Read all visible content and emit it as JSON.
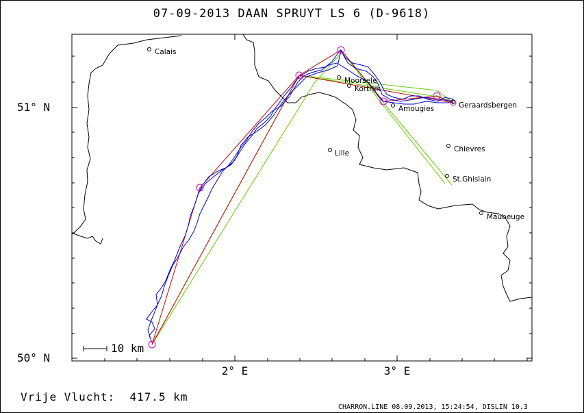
{
  "title": "07-09-2013   DAAN SPRUYT   LS 6 (D-9618)",
  "axes": {
    "y_labels": [
      "51° N",
      "50° N"
    ],
    "x_labels": [
      "2° E",
      "3° E"
    ]
  },
  "scale_label": "10 km",
  "towns": [
    "Calais",
    "Moorsele",
    "Kortrijk",
    "Amougies",
    "Geraardsbergen",
    "Lille",
    "Chievres",
    "St.Ghislain",
    "Maubeuge"
  ],
  "distance_label": "Vrije Vlucht:  417.5 km",
  "footer": "CHARRON.LINE 08.09.2013, 15:24:54, DISLIN 10.3",
  "colors": {
    "track": "#0000cc",
    "task": "#cc0000",
    "sector": "#66cc00",
    "turnpoint": "#cc00cc",
    "border": "#000000"
  }
}
